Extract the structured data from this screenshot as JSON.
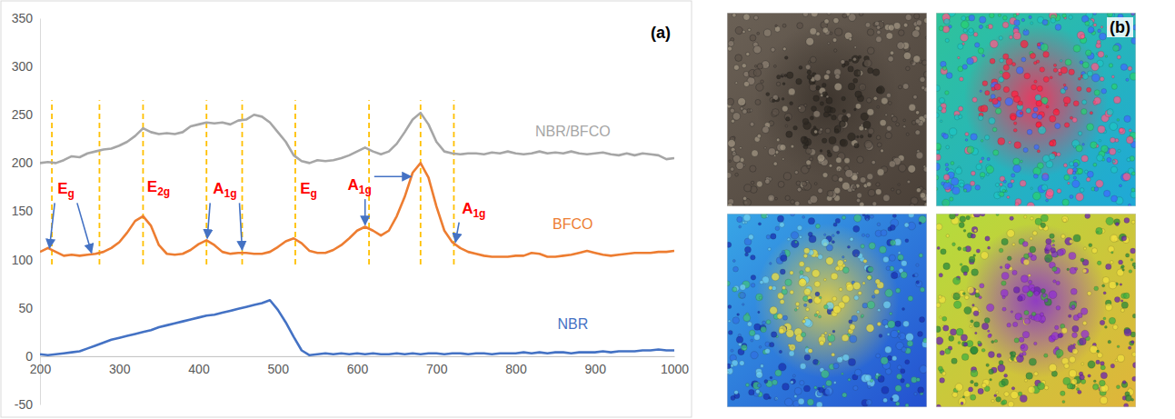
{
  "chart_data": {
    "type": "line",
    "panel_label": "(a)",
    "x": [
      200,
      210,
      220,
      230,
      240,
      250,
      260,
      270,
      280,
      290,
      300,
      310,
      320,
      330,
      340,
      350,
      360,
      370,
      380,
      390,
      400,
      410,
      420,
      430,
      440,
      450,
      460,
      470,
      480,
      490,
      500,
      510,
      520,
      530,
      540,
      550,
      560,
      570,
      580,
      590,
      600,
      610,
      620,
      630,
      640,
      650,
      660,
      670,
      680,
      690,
      700,
      710,
      720,
      730,
      740,
      750,
      760,
      770,
      780,
      790,
      800,
      810,
      820,
      830,
      840,
      850,
      860,
      870,
      880,
      890,
      900,
      910,
      920,
      930,
      940,
      950,
      960,
      970,
      980,
      990,
      1000
    ],
    "series": [
      {
        "name": "NBR/BFCO",
        "color": "#a6a6a6",
        "values": [
          200,
          201,
          200,
          203,
          207,
          206,
          210,
          212,
          214,
          215,
          218,
          222,
          228,
          236,
          232,
          230,
          231,
          230,
          232,
          238,
          240,
          242,
          241,
          242,
          240,
          244,
          245,
          250,
          248,
          242,
          232,
          222,
          208,
          202,
          200,
          203,
          202,
          203,
          205,
          208,
          212,
          216,
          212,
          209,
          212,
          220,
          232,
          245,
          252,
          240,
          222,
          212,
          210,
          209,
          210,
          210,
          209,
          211,
          210,
          212,
          210,
          209,
          210,
          212,
          210,
          211,
          210,
          212,
          210,
          209,
          210,
          211,
          209,
          208,
          210,
          208,
          210,
          209,
          208,
          204,
          205
        ]
      },
      {
        "name": "BFCO",
        "color": "#ed7d31",
        "values": [
          108,
          112,
          108,
          104,
          105,
          104,
          105,
          106,
          108,
          112,
          118,
          128,
          140,
          145,
          135,
          115,
          106,
          105,
          106,
          110,
          116,
          120,
          115,
          108,
          106,
          107,
          107,
          106,
          106,
          108,
          113,
          119,
          122,
          117,
          109,
          107,
          107,
          110,
          115,
          122,
          130,
          134,
          130,
          125,
          130,
          145,
          165,
          190,
          200,
          185,
          155,
          130,
          118,
          112,
          108,
          106,
          104,
          103,
          103,
          103,
          104,
          104,
          107,
          106,
          103,
          103,
          104,
          105,
          107,
          109,
          107,
          105,
          104,
          105,
          106,
          107,
          107,
          107,
          108,
          108,
          109
        ]
      },
      {
        "name": "NBR",
        "color": "#4472c4",
        "values": [
          2,
          1,
          2,
          3,
          4,
          5,
          8,
          11,
          14,
          17,
          19,
          21,
          23,
          25,
          27,
          30,
          32,
          34,
          36,
          38,
          40,
          42,
          43,
          45,
          47,
          49,
          51,
          53,
          55,
          58,
          48,
          35,
          20,
          6,
          1,
          2,
          3,
          2,
          3,
          2,
          3,
          2,
          3,
          2,
          2,
          3,
          2,
          3,
          2,
          3,
          3,
          2,
          3,
          3,
          2,
          3,
          3,
          2,
          3,
          3,
          3,
          4,
          3,
          4,
          3,
          4,
          4,
          3,
          4,
          4,
          4,
          5,
          4,
          5,
          5,
          5,
          6,
          6,
          7,
          6,
          6
        ]
      }
    ],
    "xlim": [
      200,
      1000
    ],
    "xticks": [
      200,
      300,
      400,
      500,
      600,
      700,
      800,
      900,
      1000
    ],
    "ylim": [
      -50,
      350
    ],
    "yticks": [
      -50,
      0,
      50,
      100,
      150,
      200,
      250,
      300,
      350
    ],
    "grid": false,
    "peak_lines": {
      "x": [
        215,
        275,
        330,
        410,
        455,
        522,
        615,
        680,
        722
      ],
      "y": [
        95,
        265
      ]
    },
    "annotations": [
      {
        "text": "E",
        "subscript": "g",
        "x": 222,
        "y": 168,
        "arrows": [
          [
            212,
            112
          ],
          [
            265,
            107
          ]
        ]
      },
      {
        "text": "E",
        "subscript": "2g",
        "x": 335,
        "y": 170,
        "arrows": []
      },
      {
        "text": "A",
        "subscript": "1g",
        "x": 418,
        "y": 168,
        "arrows": [
          [
            411,
            122
          ],
          [
            455,
            110
          ]
        ]
      },
      {
        "text": "E",
        "subscript": "g",
        "x": 528,
        "y": 168,
        "arrows": []
      },
      {
        "text": "A",
        "subscript": "1g",
        "x": 588,
        "y": 172,
        "arrows": [
          [
            610,
            136
          ],
          [
            668,
            186
          ]
        ]
      },
      {
        "text": "A",
        "subscript": "1g",
        "x": 732,
        "y": 148,
        "arrows": [
          [
            724,
            118
          ]
        ]
      }
    ]
  },
  "panel_b": {
    "label": "(b)"
  }
}
